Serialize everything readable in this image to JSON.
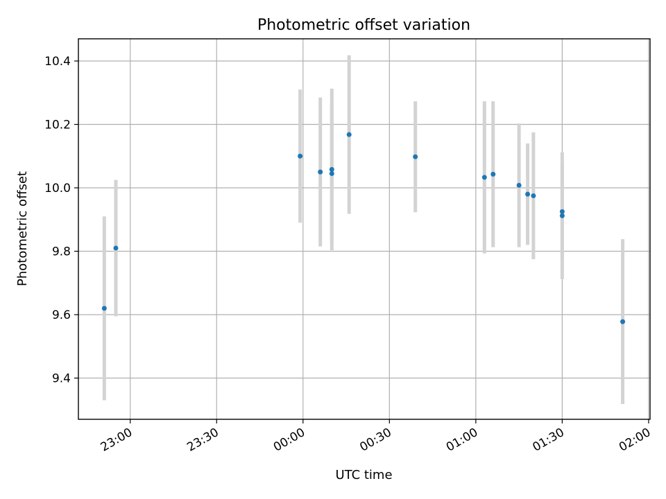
{
  "chart_data": {
    "type": "scatter",
    "title": "Photometric offset variation",
    "xlabel": "UTC time",
    "ylabel": "Photometric offset",
    "grid": true,
    "x_axis": {
      "ticks": [
        "23:00",
        "23:30",
        "00:00",
        "00:30",
        "01:00",
        "01:30",
        "02:00"
      ],
      "tick_minutes": [
        0,
        30,
        60,
        90,
        120,
        150,
        180
      ],
      "xlim": [
        -18,
        180.5
      ]
    },
    "y_axis": {
      "ticks": [
        "9.4",
        "9.6",
        "9.8",
        "10.0",
        "10.2",
        "10.4"
      ],
      "tick_values": [
        9.4,
        9.6,
        9.8,
        10.0,
        10.2,
        10.4
      ],
      "ylim": [
        9.27,
        10.47
      ]
    },
    "marker_color": "#1f77b4",
    "errorbar_color": "#d3d3d3",
    "points": [
      {
        "x": "22:51",
        "y": 9.62,
        "err": 0.29
      },
      {
        "x": "22:55",
        "y": 9.81,
        "err": 0.215
      },
      {
        "x": "23:59",
        "y": 10.1,
        "err": 0.21
      },
      {
        "x": "00:06",
        "y": 10.05,
        "err": 0.235
      },
      {
        "x": "00:10",
        "y": 10.045,
        "err": 0.22
      },
      {
        "x": "00:10",
        "y": 10.058,
        "err": 0.255
      },
      {
        "x": "00:16",
        "y": 10.168,
        "err": 0.25
      },
      {
        "x": "00:39",
        "y": 10.098,
        "err": 0.175
      },
      {
        "x": "01:03",
        "y": 10.033,
        "err": 0.24
      },
      {
        "x": "01:06",
        "y": 10.043,
        "err": 0.23
      },
      {
        "x": "01:15",
        "y": 10.008,
        "err": 0.195
      },
      {
        "x": "01:18",
        "y": 9.98,
        "err": 0.16
      },
      {
        "x": "01:20",
        "y": 9.975,
        "err": 0.2
      },
      {
        "x": "01:30",
        "y": 9.925,
        "err": 0.15
      },
      {
        "x": "01:30",
        "y": 9.912,
        "err": 0.2
      },
      {
        "x": "01:51",
        "y": 9.578,
        "err": 0.26
      }
    ]
  }
}
